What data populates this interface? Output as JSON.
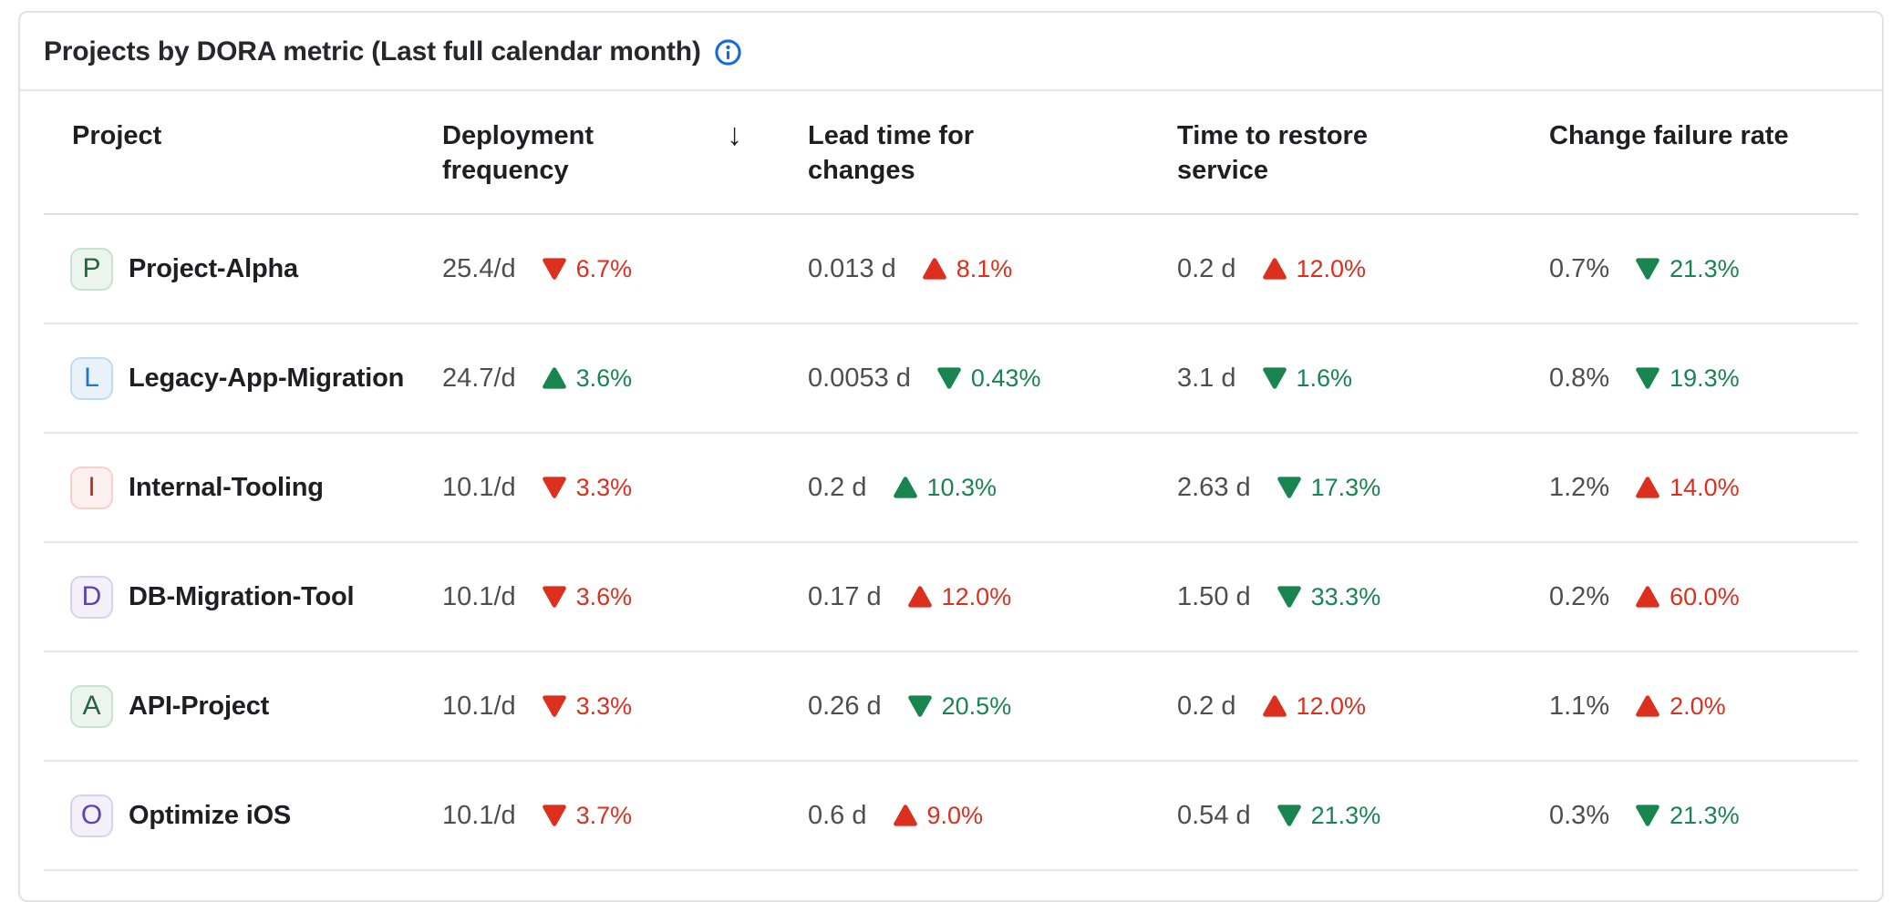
{
  "card": {
    "title": "Projects by DORA metric (Last full calendar month)"
  },
  "colors": {
    "positive": "#188450",
    "negative": "#dc2f1e",
    "info_icon": "#1868db"
  },
  "table": {
    "columns": [
      {
        "label": "Project"
      },
      {
        "label": "Deployment frequency",
        "sort_indicator": "descending"
      },
      {
        "label": "Lead time for changes"
      },
      {
        "label": "Time to restore service"
      },
      {
        "label": "Change failure rate"
      }
    ],
    "rows": [
      {
        "project": {
          "name": "Project-Alpha",
          "initial": "P",
          "avatar": {
            "bg": "#ecf4ee",
            "border": "#c7e3cc",
            "text": "#24663b"
          }
        },
        "metrics": [
          {
            "value": "25.4/d",
            "direction": "down",
            "change": "6.7%",
            "trend_color": "negative"
          },
          {
            "value": "0.013 d",
            "direction": "up",
            "change": "8.1%",
            "trend_color": "negative"
          },
          {
            "value": "0.2 d",
            "direction": "up",
            "change": "12.0%",
            "trend_color": "negative"
          },
          {
            "value": "0.7%",
            "direction": "down",
            "change": "21.3%",
            "trend_color": "positive"
          }
        ]
      },
      {
        "project": {
          "name": "Legacy-App-Migration",
          "initial": "L",
          "avatar": {
            "bg": "#e9f2fb",
            "border": "#bfdbf4",
            "text": "#1f75cb"
          }
        },
        "metrics": [
          {
            "value": "24.7/d",
            "direction": "up",
            "change": "3.6%",
            "trend_color": "positive"
          },
          {
            "value": "0.0053 d",
            "direction": "down",
            "change": "0.43%",
            "trend_color": "positive"
          },
          {
            "value": "3.1 d",
            "direction": "down",
            "change": "1.6%",
            "trend_color": "positive"
          },
          {
            "value": "0.8%",
            "direction": "down",
            "change": "19.3%",
            "trend_color": "positive"
          }
        ]
      },
      {
        "project": {
          "name": "Internal-Tooling",
          "initial": "I",
          "avatar": {
            "bg": "#fcf0ee",
            "border": "#f8d0c8",
            "text": "#b8342a"
          }
        },
        "metrics": [
          {
            "value": "10.1/d",
            "direction": "down",
            "change": "3.3%",
            "trend_color": "negative"
          },
          {
            "value": "0.2 d",
            "direction": "up",
            "change": "10.3%",
            "trend_color": "positive"
          },
          {
            "value": "2.63 d",
            "direction": "down",
            "change": "17.3%",
            "trend_color": "positive"
          },
          {
            "value": "1.2%",
            "direction": "up",
            "change": "14.0%",
            "trend_color": "negative"
          }
        ]
      },
      {
        "project": {
          "name": "DB-Migration-Tool",
          "initial": "D",
          "avatar": {
            "bg": "#f4f0fa",
            "border": "#dacff2",
            "text": "#5943b6"
          }
        },
        "metrics": [
          {
            "value": "10.1/d",
            "direction": "down",
            "change": "3.6%",
            "trend_color": "negative"
          },
          {
            "value": "0.17 d",
            "direction": "up",
            "change": "12.0%",
            "trend_color": "negative"
          },
          {
            "value": "1.50 d",
            "direction": "down",
            "change": "33.3%",
            "trend_color": "positive"
          },
          {
            "value": "0.2%",
            "direction": "up",
            "change": "60.0%",
            "trend_color": "negative"
          }
        ]
      },
      {
        "project": {
          "name": "API-Project",
          "initial": "A",
          "avatar": {
            "bg": "#ecf4ee",
            "border": "#c7e3cc",
            "text": "#24663b"
          }
        },
        "metrics": [
          {
            "value": "10.1/d",
            "direction": "down",
            "change": "3.3%",
            "trend_color": "negative"
          },
          {
            "value": "0.26 d",
            "direction": "down",
            "change": "20.5%",
            "trend_color": "positive"
          },
          {
            "value": "0.2 d",
            "direction": "up",
            "change": "12.0%",
            "trend_color": "negative"
          },
          {
            "value": "1.1%",
            "direction": "up",
            "change": "2.0%",
            "trend_color": "negative"
          }
        ]
      },
      {
        "project": {
          "name": "Optimize iOS",
          "initial": "O",
          "avatar": {
            "bg": "#f4f0fa",
            "border": "#dacff2",
            "text": "#5943b6"
          }
        },
        "metrics": [
          {
            "value": "10.1/d",
            "direction": "down",
            "change": "3.7%",
            "trend_color": "negative"
          },
          {
            "value": "0.6 d",
            "direction": "up",
            "change": "9.0%",
            "trend_color": "negative"
          },
          {
            "value": "0.54 d",
            "direction": "down",
            "change": "21.3%",
            "trend_color": "positive"
          },
          {
            "value": "0.3%",
            "direction": "down",
            "change": "21.3%",
            "trend_color": "positive"
          }
        ]
      }
    ]
  }
}
